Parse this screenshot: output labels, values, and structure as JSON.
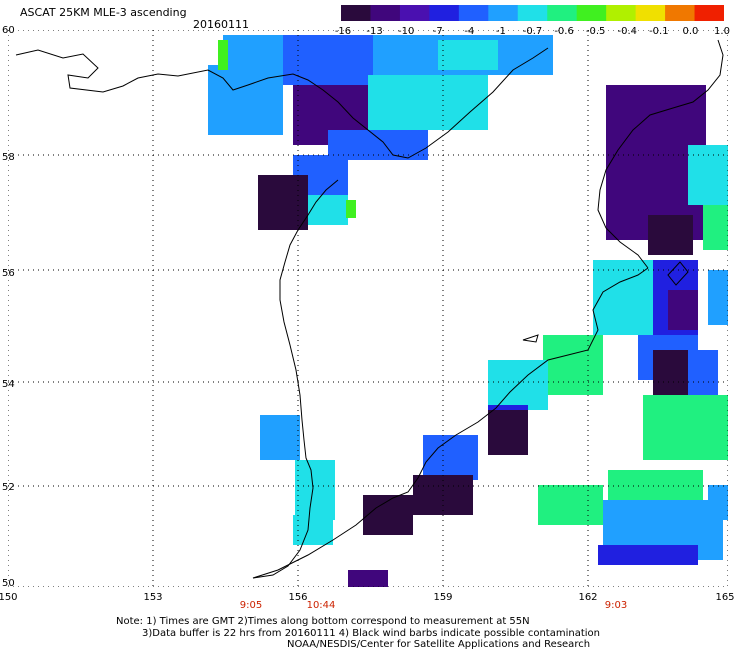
{
  "header": {
    "title": "ASCAT 25KM MLE-3 ascending",
    "date": "20160111"
  },
  "colorbar": {
    "labels": [
      "-16",
      "-13",
      "-10",
      "-7",
      "-4",
      "-1",
      "-0.7",
      "-0.6",
      "-0.5",
      "-0.4",
      "-0.1",
      "0.0",
      "1.0"
    ]
  },
  "axes": {
    "lat_labels": [
      "60",
      "58",
      "56",
      "54",
      "52",
      "50"
    ],
    "lon_labels": [
      "150",
      "153",
      "156",
      "159",
      "162",
      "165"
    ]
  },
  "pass_times": [
    "9:05",
    "10:44",
    "9:03"
  ],
  "notes": {
    "line1": "Note: 1) Times are GMT 2)Times along bottom correspond to measurement at 55N",
    "line2": "3)Data buffer is 22 hrs from 20160111 4) Black wind barbs indicate possible contamination",
    "line3": "NOAA/NESDIS/Center for Satellite Applications and Research"
  },
  "colors": {
    "scale": [
      "#2a0a3c",
      "#40067c",
      "#4a10b0",
      "#2020e0",
      "#2060ff",
      "#20a0ff",
      "#20e0e8",
      "#20f080",
      "#40f020",
      "#b0f000",
      "#f0e000",
      "#f07800",
      "#f02000"
    ],
    "coastline": "#000000",
    "gridline": "#000000",
    "time_label": "#cc2200"
  }
}
